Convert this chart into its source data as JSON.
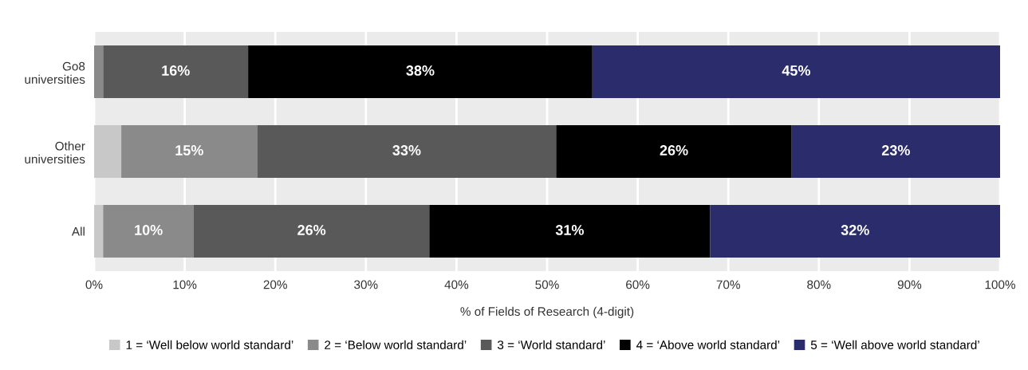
{
  "chart_data": {
    "type": "bar",
    "orientation": "horizontal",
    "stacked": true,
    "categories": [
      "Go8\nuniversities",
      "Other\nuniversities",
      "All"
    ],
    "xlabel": "% of Fields of Research (4-digit)",
    "xlim": [
      0,
      100
    ],
    "xticks": [
      {
        "value": 0,
        "label": "0%"
      },
      {
        "value": 10,
        "label": "10%"
      },
      {
        "value": 20,
        "label": "20%"
      },
      {
        "value": 30,
        "label": "30%"
      },
      {
        "value": 40,
        "label": "40%"
      },
      {
        "value": 50,
        "label": "50%"
      },
      {
        "value": 60,
        "label": "60%"
      },
      {
        "value": 70,
        "label": "70%"
      },
      {
        "value": 80,
        "label": "80%"
      },
      {
        "value": 90,
        "label": "90%"
      },
      {
        "value": 100,
        "label": "100%"
      }
    ],
    "grid": "x",
    "legend": "bottom",
    "series": [
      {
        "name": "1 = ‘Well below world standard’",
        "color": "#c8c8c8",
        "values": [
          0,
          3,
          1
        ],
        "value_labels": [
          null,
          null,
          null
        ]
      },
      {
        "name": "2 = ‘Below world standard’",
        "color": "#8a8a8a",
        "values": [
          1,
          15,
          10
        ],
        "value_labels": [
          null,
          "15%",
          "10%"
        ]
      },
      {
        "name": "3 = ‘World standard’",
        "color": "#595959",
        "values": [
          16,
          33,
          26
        ],
        "value_labels": [
          "16%",
          "33%",
          "26%"
        ]
      },
      {
        "name": "4 = ‘Above world standard’",
        "color": "#000000",
        "values": [
          38,
          26,
          31
        ],
        "value_labels": [
          "38%",
          "26%",
          "31%"
        ]
      },
      {
        "name": "5 = ‘Well above world standard’",
        "color": "#2a2c6b",
        "values": [
          45,
          23,
          32
        ],
        "value_labels": [
          "45%",
          "23%",
          "32%"
        ]
      }
    ]
  }
}
